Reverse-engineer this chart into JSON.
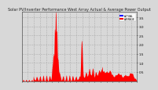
{
  "title": "Solar PV/Inverter Performance West Array Actual & Average Power Output",
  "bg_color": "#d8d8d8",
  "plot_bg": "#d8d8d8",
  "bar_color": "#ff0000",
  "avg_color": "#ff6600",
  "legend_label1": "ACTUAL",
  "legend_color1": "#0000ff",
  "legend_label2": "AVERAGE",
  "legend_color2": "#ff0000",
  "ylim_max": 3.8,
  "yticks": [
    0.5,
    1.0,
    1.5,
    2.0,
    2.5,
    3.0,
    3.5
  ],
  "title_fontsize": 3.5,
  "tick_fontsize": 3.0,
  "grid_color": "#aaaaaa",
  "num_points": 500
}
